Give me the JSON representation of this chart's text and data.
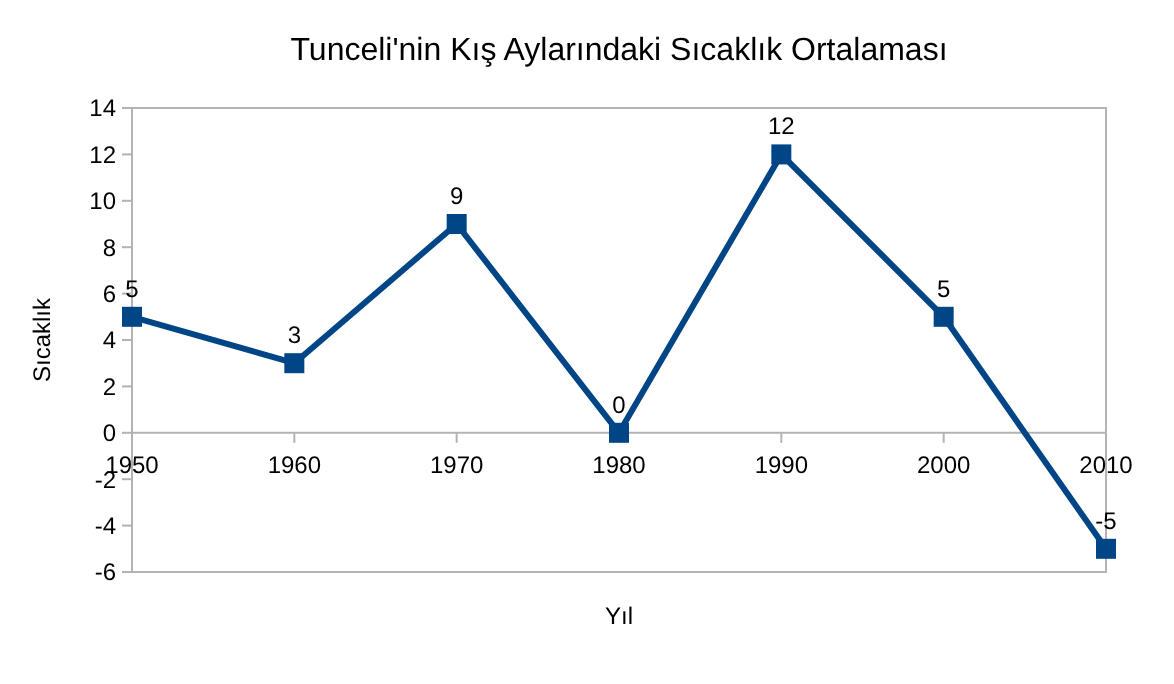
{
  "chart_data": {
    "type": "line",
    "title": "Tunceli'nin Kış Aylarındaki Sıcaklık Ortalaması",
    "xlabel": "Yıl",
    "ylabel": "Sıcaklık",
    "categories": [
      "1950",
      "1960",
      "1970",
      "1980",
      "1990",
      "2000",
      "2010"
    ],
    "series": [
      {
        "color": "#004586",
        "values": [
          5,
          3,
          9,
          0,
          12,
          5,
          -5
        ]
      }
    ],
    "ylim": [
      -6,
      14
    ],
    "yticks": [
      -6,
      -4,
      -2,
      0,
      2,
      4,
      6,
      8,
      10,
      12,
      14
    ],
    "grid": false,
    "marker": "square",
    "line_style": "solid",
    "data_labels": true
  }
}
